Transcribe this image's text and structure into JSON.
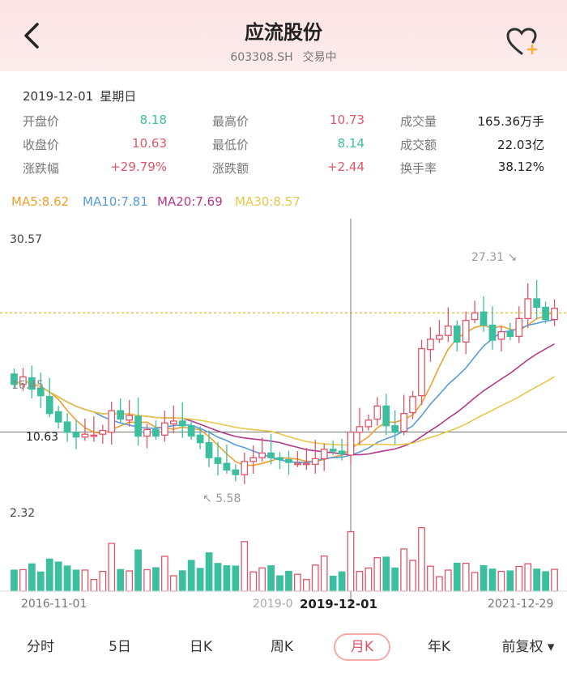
{
  "header": {
    "title": "应流股份",
    "code": "603308.SH",
    "status": "交易中"
  },
  "info": {
    "date": "2019-12-01",
    "weekday": "星期日",
    "rows": [
      [
        {
          "k": "开盘价",
          "v": "8.18",
          "c": "green"
        },
        {
          "k": "最高价",
          "v": "10.73",
          "c": "red"
        },
        {
          "k": "成交量",
          "v": "165.36万手",
          "c": "dark"
        }
      ],
      [
        {
          "k": "收盘价",
          "v": "10.63",
          "c": "red"
        },
        {
          "k": "最低价",
          "v": "8.14",
          "c": "green"
        },
        {
          "k": "成交额",
          "v": "22.03亿",
          "c": "dark"
        }
      ],
      [
        {
          "k": "涨跌幅",
          "v": "+29.79%",
          "c": "red"
        },
        {
          "k": "涨跌额",
          "v": "+2.44",
          "c": "red"
        },
        {
          "k": "换手率",
          "v": "38.12%",
          "c": "dark"
        }
      ]
    ]
  },
  "ma": [
    {
      "label": "MA5:8.62",
      "color": "#f0a030"
    },
    {
      "label": "MA10:7.81",
      "color": "#5a9bd8"
    },
    {
      "label": "MA20:7.69",
      "color": "#b23a8a"
    },
    {
      "label": "MA30:8.57",
      "color": "#e8c84a"
    }
  ],
  "chart": {
    "y_top_label": "30.57",
    "y_bottom_label": "2.32",
    "price_label": "10.63",
    "left_price_label": "16.45",
    "high_marker": "27.31",
    "low_marker": "5.58",
    "x_start": "2016-11-01",
    "x_mid_cut": "2019-0",
    "x_selected": "2019-12-01",
    "x_end": "2021-12-29"
  },
  "tabs": [
    "分时",
    "5日",
    "日K",
    "周K",
    "月K",
    "年K",
    "前复权"
  ],
  "colors": {
    "up": "#e05668",
    "down": "#3bbf9f",
    "accent": "#e05668"
  },
  "chart_data": {
    "type": "candlestick",
    "x_range": [
      "2016-11-01",
      "2021-12-29"
    ],
    "ylim": [
      2.32,
      30.57
    ],
    "selected": {
      "date": "2019-12-01",
      "open": 8.18,
      "high": 10.73,
      "low": 8.14,
      "close": 10.63
    },
    "candles": [
      {
        "o": 16.8,
        "c": 15.7
      },
      {
        "o": 15.7,
        "c": 16.5
      },
      {
        "o": 16.4,
        "c": 15.2
      },
      {
        "o": 15.3,
        "c": 14.5
      },
      {
        "o": 14.4,
        "c": 12.6
      },
      {
        "o": 12.8,
        "c": 11.7
      },
      {
        "o": 11.7,
        "c": 10.6
      },
      {
        "o": 10.6,
        "c": 10.1
      },
      {
        "o": 10.1,
        "c": 10.4
      },
      {
        "o": 10.3,
        "c": 10.3
      },
      {
        "o": 10.4,
        "c": 10.8
      },
      {
        "o": 10.6,
        "c": 12.9
      },
      {
        "o": 12.9,
        "c": 12.0
      },
      {
        "o": 11.9,
        "c": 12.4
      },
      {
        "o": 12.3,
        "c": 10.2
      },
      {
        "o": 10.2,
        "c": 10.9
      },
      {
        "o": 10.9,
        "c": 10.2
      },
      {
        "o": 10.3,
        "c": 11.6
      },
      {
        "o": 11.5,
        "c": 11.8
      },
      {
        "o": 11.8,
        "c": 11.3
      },
      {
        "o": 11.3,
        "c": 10.2
      },
      {
        "o": 10.3,
        "c": 9.5
      },
      {
        "o": 9.5,
        "c": 7.9
      },
      {
        "o": 7.9,
        "c": 7.3
      },
      {
        "o": 7.3,
        "c": 6.6
      },
      {
        "o": 6.6,
        "c": 6.1
      },
      {
        "o": 6.1,
        "c": 7.5
      },
      {
        "o": 7.5,
        "c": 7.9
      },
      {
        "o": 7.9,
        "c": 8.4
      },
      {
        "o": 8.4,
        "c": 7.9
      },
      {
        "o": 7.9,
        "c": 7.7
      },
      {
        "o": 7.7,
        "c": 7.4
      },
      {
        "o": 7.3,
        "c": 7.3
      },
      {
        "o": 7.3,
        "c": 7.3
      },
      {
        "o": 7.2,
        "c": 7.8
      },
      {
        "o": 7.8,
        "c": 8.8
      },
      {
        "o": 8.8,
        "c": 8.6
      },
      {
        "o": 8.6,
        "c": 8.3
      },
      {
        "o": 8.18,
        "c": 10.63
      },
      {
        "o": 10.6,
        "c": 11.2
      },
      {
        "o": 11.2,
        "c": 11.9
      },
      {
        "o": 12.0,
        "c": 13.4
      },
      {
        "o": 13.4,
        "c": 11.3
      },
      {
        "o": 11.3,
        "c": 10.6
      },
      {
        "o": 10.7,
        "c": 12.6
      },
      {
        "o": 12.7,
        "c": 14.4
      },
      {
        "o": 14.5,
        "c": 19.5
      },
      {
        "o": 19.4,
        "c": 20.5
      },
      {
        "o": 20.5,
        "c": 20.9
      },
      {
        "o": 20.9,
        "c": 21.9
      },
      {
        "o": 21.9,
        "c": 20.2
      },
      {
        "o": 20.2,
        "c": 22.5
      },
      {
        "o": 22.6,
        "c": 23.3
      },
      {
        "o": 23.4,
        "c": 22.0
      },
      {
        "o": 22.0,
        "c": 20.4
      },
      {
        "o": 20.5,
        "c": 21.3
      },
      {
        "o": 21.3,
        "c": 20.8
      },
      {
        "o": 20.8,
        "c": 22.7
      },
      {
        "o": 22.7,
        "c": 24.8
      },
      {
        "o": 24.8,
        "c": 23.9
      },
      {
        "o": 23.9,
        "c": 22.6
      },
      {
        "o": 22.6,
        "c": 23.8
      }
    ]
  }
}
